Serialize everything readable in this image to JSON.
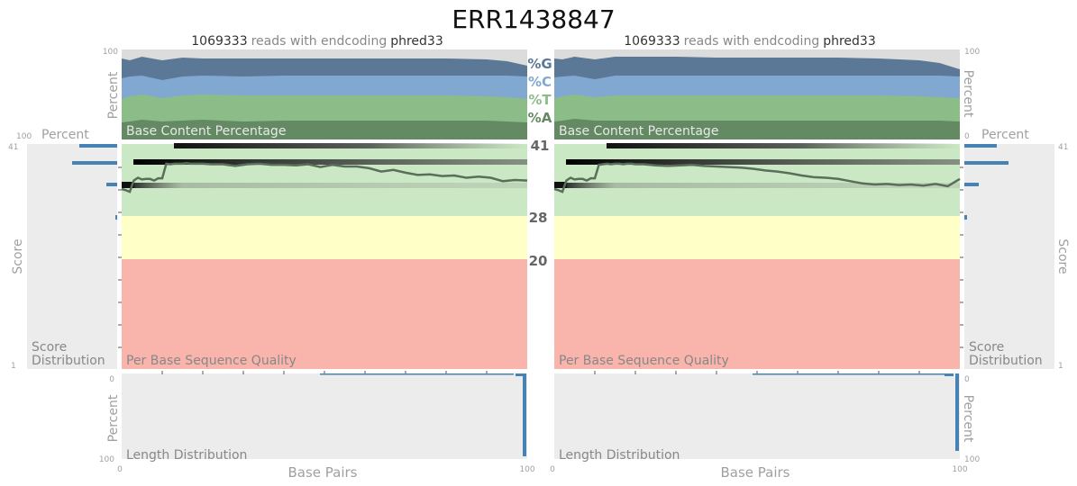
{
  "header": {
    "title": "ERR1438847"
  },
  "colors": {
    "G": "#5b7896",
    "C": "#80a8d0",
    "T": "#8cbd88",
    "A": "#648a64",
    "quality_good": "#cbe8c4",
    "quality_ok": "#ffffc8",
    "quality_bad": "#f9b4ac",
    "distribution_bar": "#4682b4",
    "panel_bg": "#ececec",
    "axis_text": "#a0a0a0"
  },
  "legend": {
    "g": "%G",
    "c": "%C",
    "t": "%T",
    "a": "%A"
  },
  "thresholds": {
    "top": "41",
    "good": "28",
    "ok": "20"
  },
  "panels": [
    {
      "read_info": {
        "count": "1069333",
        "middle": "reads with endcoding",
        "encoding": "phred33"
      },
      "base_content_label": "Base Content Percentage",
      "quality_label": "Per Base Sequence Quality",
      "length_label": "Length Distribution",
      "score_dist_label_1": "Score",
      "score_dist_label_2": "Distribution",
      "percent_label": "Percent",
      "score_label": "Score",
      "x_label": "Base Pairs",
      "ticks": {
        "p100": "100",
        "p0": "0",
        "s41": "41",
        "s1": "1",
        "x0": "0",
        "x100": "100"
      }
    },
    {
      "read_info": {
        "count": "1069333",
        "middle": "reads with endcoding",
        "encoding": "phred33"
      },
      "base_content_label": "Base Content Percentage",
      "quality_label": "Per Base Sequence Quality",
      "length_label": "Length Distribution",
      "score_dist_label_1": "Score",
      "score_dist_label_2": "Distribution",
      "percent_label": "Percent",
      "score_label": "Score",
      "x_label": "Base Pairs",
      "ticks": {
        "p100": "100",
        "p0": "0",
        "s41": "41",
        "s1": "1",
        "x0": "0",
        "x100": "100"
      }
    }
  ],
  "chart_data": [
    {
      "type": "area",
      "panel": 1,
      "x_range": [
        0,
        100
      ],
      "y_range": [
        0,
        100
      ],
      "series": [
        {
          "name": "%A",
          "points": [
            [
              0,
              19
            ],
            [
              2,
              20
            ],
            [
              5,
              22
            ],
            [
              10,
              20
            ],
            [
              15,
              21
            ],
            [
              20,
              22
            ],
            [
              30,
              20
            ],
            [
              40,
              21
            ],
            [
              50,
              21
            ],
            [
              60,
              21
            ],
            [
              70,
              21
            ],
            [
              80,
              21
            ],
            [
              90,
              21
            ],
            [
              95,
              20
            ],
            [
              100,
              19
            ]
          ]
        },
        {
          "name": "%T",
          "points": [
            [
              0,
              45
            ],
            [
              2,
              48
            ],
            [
              5,
              50
            ],
            [
              10,
              46
            ],
            [
              15,
              49
            ],
            [
              20,
              50
            ],
            [
              30,
              49
            ],
            [
              40,
              49
            ],
            [
              50,
              49
            ],
            [
              60,
              49
            ],
            [
              70,
              49
            ],
            [
              80,
              49
            ],
            [
              90,
              48
            ],
            [
              95,
              47
            ],
            [
              100,
              45
            ]
          ]
        },
        {
          "name": "%C",
          "points": [
            [
              0,
              68
            ],
            [
              2,
              70
            ],
            [
              5,
              71
            ],
            [
              10,
              66
            ],
            [
              15,
              70
            ],
            [
              20,
              71
            ],
            [
              30,
              70
            ],
            [
              40,
              71
            ],
            [
              50,
              71
            ],
            [
              60,
              71
            ],
            [
              70,
              71
            ],
            [
              80,
              71
            ],
            [
              90,
              71
            ],
            [
              95,
              71
            ],
            [
              100,
              70
            ]
          ]
        },
        {
          "name": "%G",
          "points": [
            [
              0,
              90
            ],
            [
              2,
              88
            ],
            [
              5,
              92
            ],
            [
              10,
              88
            ],
            [
              15,
              91
            ],
            [
              20,
              90
            ],
            [
              30,
              90
            ],
            [
              40,
              90
            ],
            [
              50,
              90
            ],
            [
              60,
              90
            ],
            [
              70,
              90
            ],
            [
              80,
              90
            ],
            [
              90,
              89
            ],
            [
              95,
              87
            ],
            [
              100,
              82
            ]
          ]
        }
      ]
    },
    {
      "type": "area",
      "panel": 2,
      "x_range": [
        0,
        100
      ],
      "y_range": [
        0,
        100
      ],
      "series": [
        {
          "name": "%A",
          "points": [
            [
              0,
              20
            ],
            [
              2,
              21
            ],
            [
              5,
              23
            ],
            [
              10,
              21
            ],
            [
              15,
              21
            ],
            [
              20,
              21
            ],
            [
              30,
              21
            ],
            [
              40,
              21
            ],
            [
              50,
              21
            ],
            [
              60,
              21
            ],
            [
              70,
              21
            ],
            [
              80,
              21
            ],
            [
              90,
              21
            ],
            [
              95,
              21
            ],
            [
              100,
              20
            ]
          ]
        },
        {
          "name": "%T",
          "points": [
            [
              0,
              46
            ],
            [
              2,
              48
            ],
            [
              5,
              50
            ],
            [
              10,
              47
            ],
            [
              15,
              49
            ],
            [
              20,
              49
            ],
            [
              30,
              49
            ],
            [
              40,
              49
            ],
            [
              50,
              49
            ],
            [
              60,
              49
            ],
            [
              70,
              49
            ],
            [
              80,
              49
            ],
            [
              90,
              48
            ],
            [
              95,
              47
            ],
            [
              100,
              46
            ]
          ]
        },
        {
          "name": "%C",
          "points": [
            [
              0,
              69
            ],
            [
              2,
              70
            ],
            [
              5,
              71
            ],
            [
              10,
              67
            ],
            [
              15,
              71
            ],
            [
              20,
              71
            ],
            [
              30,
              71
            ],
            [
              40,
              71
            ],
            [
              50,
              71
            ],
            [
              60,
              71
            ],
            [
              70,
              71
            ],
            [
              80,
              71
            ],
            [
              90,
              71
            ],
            [
              95,
              71
            ],
            [
              100,
              70
            ]
          ]
        },
        {
          "name": "%G",
          "points": [
            [
              0,
              90
            ],
            [
              2,
              89
            ],
            [
              5,
              92
            ],
            [
              10,
              89
            ],
            [
              15,
              92
            ],
            [
              20,
              92
            ],
            [
              30,
              92
            ],
            [
              40,
              91
            ],
            [
              50,
              91
            ],
            [
              60,
              91
            ],
            [
              70,
              91
            ],
            [
              80,
              90
            ],
            [
              90,
              88
            ],
            [
              95,
              85
            ],
            [
              100,
              78
            ]
          ]
        }
      ]
    },
    {
      "type": "line",
      "panel": 1,
      "x_range": [
        0,
        100
      ],
      "y_range": [
        1,
        41
      ],
      "x": [
        0,
        1,
        2,
        3,
        4,
        5,
        6,
        7,
        8,
        9,
        10,
        11,
        12,
        13,
        14,
        15,
        16,
        17,
        18,
        19,
        20,
        22,
        25,
        28,
        31,
        34,
        37,
        40,
        43,
        46,
        49,
        52,
        55,
        58,
        61,
        64,
        67,
        70,
        73,
        76,
        79,
        82,
        85,
        88,
        91,
        94,
        97,
        100
      ],
      "y": [
        33,
        32.8,
        32.5,
        34.5,
        35,
        34.7,
        34.8,
        34.8,
        34.5,
        34.9,
        34.9,
        37.5,
        37.4,
        37.5,
        37.5,
        37.5,
        37.6,
        37.5,
        37.5,
        37.5,
        37.5,
        37.4,
        37.4,
        37.1,
        37.4,
        37.5,
        37.3,
        37.3,
        37.2,
        37.4,
        36.9,
        37.3,
        37,
        37,
        36.7,
        36.1,
        36.4,
        35.9,
        35.5,
        35.6,
        35.3,
        35.4,
        35,
        35.2,
        35,
        34.4,
        34.6,
        34.5
      ]
    },
    {
      "type": "line",
      "panel": 2,
      "x_range": [
        0,
        100
      ],
      "y_range": [
        1,
        41
      ],
      "x": [
        0,
        1,
        2,
        3,
        4,
        5,
        6,
        7,
        8,
        9,
        10,
        11,
        12,
        13,
        14,
        15,
        16,
        17,
        18,
        19,
        20,
        22,
        25,
        28,
        31,
        34,
        37,
        40,
        43,
        46,
        49,
        52,
        55,
        58,
        61,
        64,
        67,
        70,
        73,
        76,
        79,
        82,
        85,
        88,
        91,
        94,
        97,
        100
      ],
      "y": [
        33,
        32.8,
        32.5,
        34.5,
        35,
        34.7,
        34.8,
        34.8,
        34.5,
        34.9,
        34.9,
        37.3,
        37.4,
        37.5,
        37.4,
        37.5,
        37.5,
        37.4,
        37.5,
        37.5,
        37.4,
        37.4,
        37.2,
        37.1,
        37.2,
        37.3,
        37.1,
        37,
        36.9,
        36.8,
        36.6,
        36.3,
        36.1,
        35.8,
        35.4,
        35.1,
        35,
        34.8,
        34.4,
        34,
        33.8,
        33.9,
        33.7,
        33.8,
        33.6,
        33.9,
        33.5,
        34.8
      ]
    }
  ]
}
